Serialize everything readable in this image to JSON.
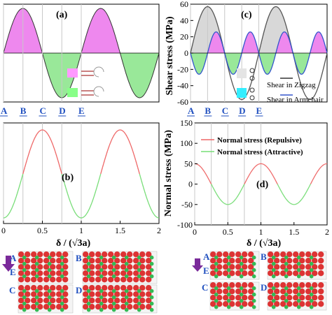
{
  "colors": {
    "pink_fill": "#ee88ee",
    "green_fill": "#99e899",
    "zigzag_line": "#555555",
    "armchair_line": "#3355cc",
    "repulsive": "#ee6666",
    "attractive": "#77dd77",
    "grey_fill": "#d8d8d8",
    "vline": "#c8c8c8",
    "point_label": "#1f4fbf",
    "arrow": "#7a2a9a",
    "atom_red": "#dd3333",
    "atom_green": "#33bb55",
    "swatch_cyan": "#33eeff",
    "swatch_grey": "#e4e4e4"
  },
  "point_labels": [
    "A",
    "B",
    "C",
    "D",
    "E"
  ],
  "snapshot_labels_left": [
    "A",
    "B",
    "C",
    "D",
    "E"
  ],
  "snapshot_labels_right": [
    "A",
    "B",
    "C",
    "D",
    "E"
  ],
  "chart_data": [
    {
      "id": "a",
      "panel_label": "(a)",
      "type": "area",
      "title": "",
      "xlabel": "",
      "ylabel": "",
      "xlim": [
        0,
        2
      ],
      "description_series": [
        {
          "name": "",
          "function": "sin(2*pi*x)",
          "sign_colors": {
            "positive": "pink",
            "negative": "green"
          }
        }
      ],
      "x": [
        0,
        0.25,
        0.5,
        0.75,
        1.0,
        1.25,
        1.5,
        1.75,
        2.0
      ],
      "y": [
        0,
        1,
        0,
        -1,
        0,
        1,
        0,
        -1,
        0
      ],
      "vlines_at_x": [
        0,
        0.25,
        0.5,
        0.75,
        1.0
      ]
    },
    {
      "id": "b",
      "panel_label": "(b)",
      "type": "line",
      "xlabel": "",
      "ylabel": "",
      "xlim": [
        0,
        2
      ],
      "x_ticks": [
        "0",
        "0.5",
        "1",
        "1.5",
        "2"
      ],
      "x": [
        0,
        0.125,
        0.25,
        0.375,
        0.5,
        0.625,
        0.75,
        0.875,
        1.0,
        1.125,
        1.25,
        1.375,
        1.5,
        1.625,
        1.75,
        1.875,
        2.0
      ],
      "y": [
        0,
        0.15,
        0.5,
        0.85,
        1.0,
        0.85,
        0.5,
        0.15,
        0,
        0.15,
        0.5,
        0.85,
        1.0,
        0.85,
        0.5,
        0.15,
        0
      ],
      "note": "",
      "vlines_at_x": [
        0,
        0.25,
        0.5,
        0.75,
        1.0
      ]
    },
    {
      "id": "c",
      "panel_label": "(c)",
      "type": "line",
      "ylabel": "Shear stress (MPa)",
      "xlabel": "",
      "xlim": [
        0,
        2
      ],
      "ylim": [
        -60,
        60
      ],
      "y_ticks": [
        60,
        40,
        20,
        0,
        -20,
        -40,
        -60
      ],
      "series": [
        {
          "name": "Shear in Zigzag",
          "x": [
            0,
            0.25,
            0.5,
            0.75,
            1.0,
            1.25,
            1.5,
            1.75,
            2.0
          ],
          "y": [
            0,
            57,
            0,
            -57,
            0,
            57,
            0,
            -57,
            0
          ]
        },
        {
          "name": "Shear in Armchair",
          "x": [
            0,
            0.125,
            0.25,
            0.375,
            0.5,
            0.625,
            0.75,
            0.875,
            1.0,
            1.125,
            1.25,
            1.375,
            1.5,
            1.625,
            1.75,
            1.875,
            2.0
          ],
          "y": [
            0,
            -20,
            -26,
            -20,
            0,
            20,
            26,
            20,
            0,
            -20,
            -26,
            -20,
            0,
            20,
            26,
            20,
            0
          ]
        }
      ],
      "vlines_at_x": [
        0,
        0.25,
        0.5,
        0.75,
        1.0
      ]
    },
    {
      "id": "d",
      "panel_label": "(d)",
      "type": "line",
      "ylabel": "Normal stress (MPa)",
      "xlabel": "δ / (√3a)",
      "xlim": [
        0,
        2
      ],
      "ylim": [
        -100,
        150
      ],
      "y_ticks": [
        150,
        100,
        50,
        0,
        -50,
        -100
      ],
      "x_ticks": [
        "0",
        "0.5",
        "1",
        "1.5",
        "2"
      ],
      "series": [
        {
          "name": "Normal stress (Repulsive)",
          "x": [
            0,
            0.25,
            0.5,
            0.75,
            1.0,
            1.25,
            1.5,
            1.75,
            2.0
          ],
          "y": [
            50,
            0,
            -50,
            0,
            50,
            0,
            -50,
            0,
            50
          ]
        },
        {
          "name": "Normal stress (Attractive)",
          "x": [
            0,
            0.25,
            0.5,
            0.75,
            1.0,
            1.25,
            1.5,
            1.75,
            2.0
          ],
          "y": [
            50,
            0,
            -50,
            0,
            50,
            0,
            -50,
            0,
            50
          ]
        }
      ],
      "vlines_at_x": [
        0,
        0.25,
        0.5,
        0.75,
        1.0
      ]
    }
  ],
  "legend_c": [
    "Shear in Zigzag",
    "Shear in Armchair"
  ],
  "legend_d": [
    "Normal stress (Repulsive)",
    "Normal stress (Attractive)"
  ],
  "xlabel_left": "δ / (√3a)",
  "xlabel_right": "δ / (√3a)"
}
